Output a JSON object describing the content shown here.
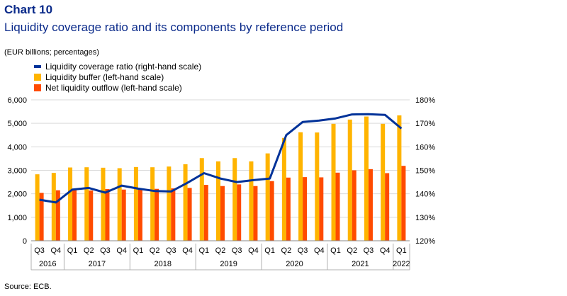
{
  "header": {
    "chart_label": "Chart 10",
    "title": "Liquidity coverage ratio and its components by reference period",
    "units": "(EUR billions; percentages)",
    "source": "Source: ECB."
  },
  "colors": {
    "buffer": "#ffb400",
    "outflow": "#ff4b00",
    "lcr": "#003299",
    "grid": "#d9d9d9",
    "separator": "#b0b0b0"
  },
  "chart_data": {
    "type": "bar",
    "categories": [
      "Q3",
      "Q4",
      "Q1",
      "Q2",
      "Q3",
      "Q4",
      "Q1",
      "Q2",
      "Q3",
      "Q4",
      "Q1",
      "Q2",
      "Q3",
      "Q4",
      "Q1",
      "Q2",
      "Q3",
      "Q4",
      "Q1",
      "Q2",
      "Q3",
      "Q4",
      "Q1"
    ],
    "year_groups": [
      {
        "label": "2016",
        "start": 0,
        "end": 1
      },
      {
        "label": "2017",
        "start": 2,
        "end": 5
      },
      {
        "label": "2018",
        "start": 6,
        "end": 9
      },
      {
        "label": "2019",
        "start": 10,
        "end": 13
      },
      {
        "label": "2020",
        "start": 14,
        "end": 17
      },
      {
        "label": "2021",
        "start": 18,
        "end": 21
      },
      {
        "label": "2022",
        "start": 22,
        "end": 22
      }
    ],
    "series": [
      {
        "name": "Liquidity buffer (left-hand scale)",
        "axis": "left",
        "kind": "bar",
        "values": [
          2830,
          2890,
          3120,
          3130,
          3110,
          3090,
          3140,
          3130,
          3160,
          3260,
          3520,
          3380,
          3520,
          3380,
          3720,
          4380,
          4620,
          4610,
          4980,
          5160,
          5290,
          4980,
          5340
        ]
      },
      {
        "name": "Net liquidity outflow (left-hand scale)",
        "axis": "left",
        "kind": "bar",
        "values": [
          2040,
          2150,
          2200,
          2140,
          2200,
          2180,
          2200,
          2210,
          2230,
          2250,
          2380,
          2330,
          2400,
          2330,
          2540,
          2690,
          2710,
          2700,
          2900,
          3000,
          3050,
          2880,
          3190
        ]
      },
      {
        "name": "Liquidity coverage ratio (right-hand scale)",
        "axis": "right",
        "kind": "line",
        "values": [
          137.5,
          136.3,
          141.8,
          142.5,
          140.5,
          143.5,
          142.2,
          141.2,
          141.0,
          144.7,
          148.8,
          146.5,
          145.0,
          145.8,
          146.5,
          165.0,
          170.6,
          171.2,
          172.1,
          173.8,
          173.9,
          173.6,
          167.8
        ]
      }
    ],
    "legend_order": [
      2,
      0,
      1
    ],
    "y_left": {
      "min": 0,
      "max": 6000,
      "ticks": [
        "0",
        "1,000",
        "2,000",
        "3,000",
        "4,000",
        "5,000",
        "6,000"
      ]
    },
    "y_right": {
      "min": 120,
      "max": 180,
      "ticks": [
        "120%",
        "130%",
        "140%",
        "150%",
        "160%",
        "170%",
        "180%"
      ]
    },
    "grid": true,
    "legend_position": "top-left"
  }
}
